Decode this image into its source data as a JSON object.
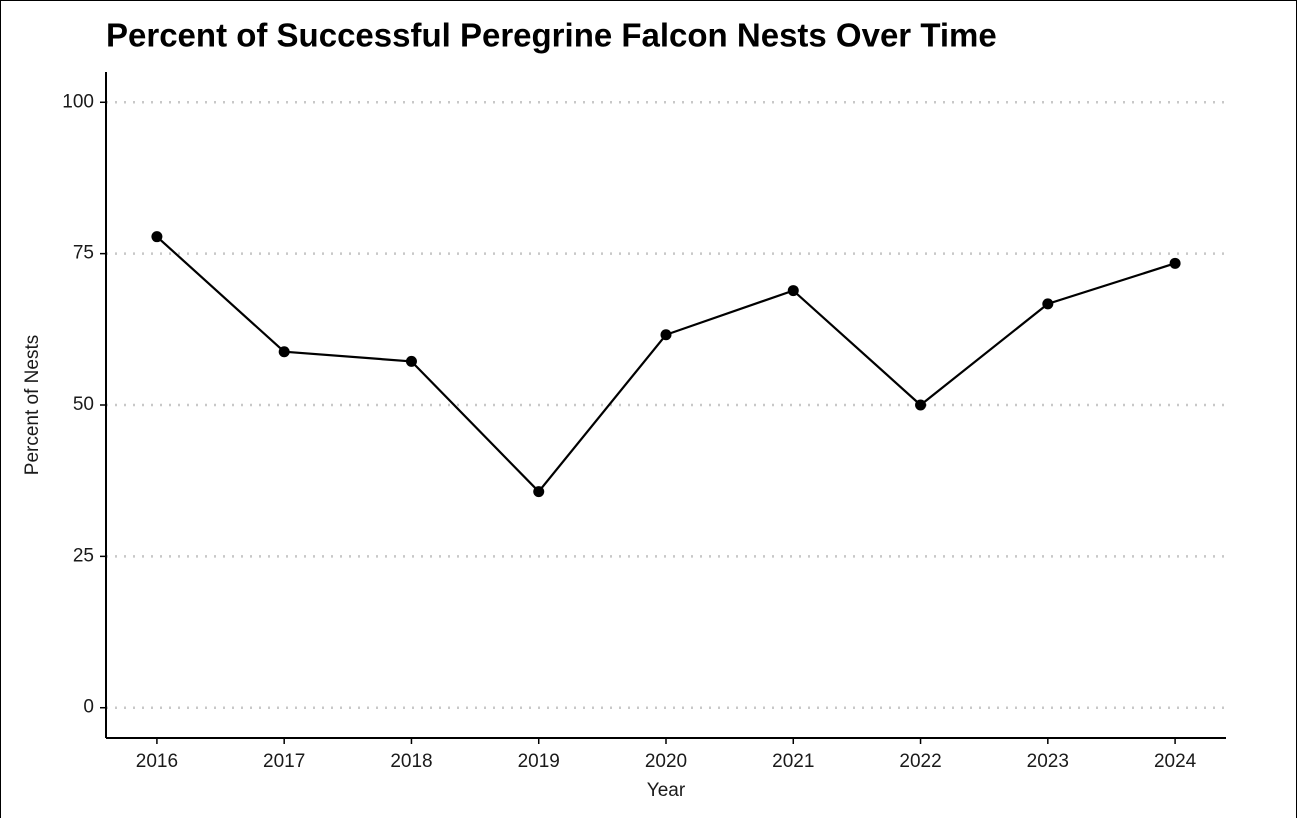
{
  "chart_data": {
    "type": "line",
    "title": "Percent of Successful Peregrine Falcon Nests Over Time",
    "x_label": "Year",
    "y_label": "Percent of Nests",
    "x": [
      2016,
      2017,
      2018,
      2019,
      2020,
      2021,
      2022,
      2023,
      2024
    ],
    "values": [
      77.8,
      58.8,
      57.2,
      35.7,
      61.6,
      68.9,
      50,
      66.7,
      73.4
    ],
    "color": "#000000",
    "xlim": [
      2015.6,
      2024.4
    ],
    "xticks": [
      2016,
      2017,
      2018,
      2019,
      2020,
      2021,
      2022,
      2023,
      2024
    ],
    "ylim": [
      -5,
      105
    ],
    "yticks": [
      0,
      25,
      50,
      75,
      100
    ],
    "grid": true
  }
}
